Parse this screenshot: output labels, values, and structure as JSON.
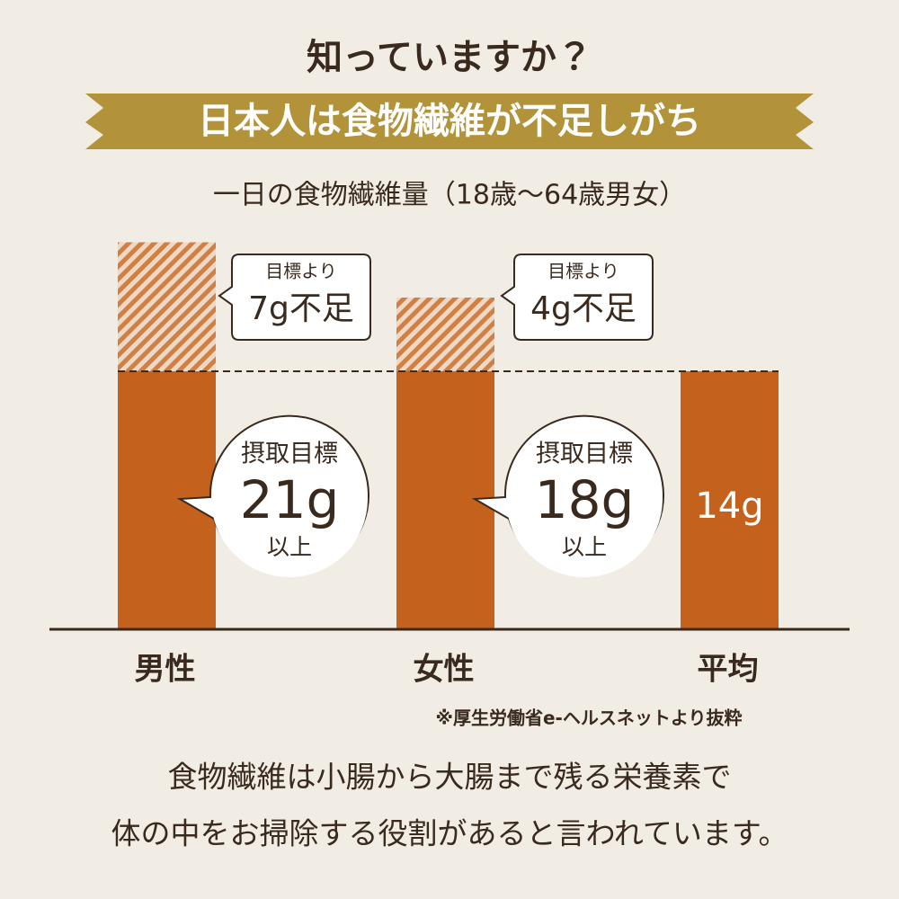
{
  "header": {
    "title": "知っていますか？",
    "banner": "日本人は食物繊維が不足しがち"
  },
  "chart_data": {
    "type": "bar",
    "title": "一日の食物繊維量（18歳～64歳男女）",
    "categories": [
      "男性",
      "女性",
      "平均"
    ],
    "values": [
      21,
      18,
      14
    ],
    "value_labels": [
      "21g",
      "18g",
      "14g"
    ],
    "color": "#c4621d",
    "target_caption": "摂取目標",
    "target_suffix": "以上",
    "shortfall_caption": "目標より",
    "shortfall_labels": [
      "7g不足",
      "4g不足",
      null
    ],
    "source": "※厚生労働省e-ヘルスネットより抜粋"
  },
  "footer": {
    "lines": [
      "食物繊維は小腸から大腸まで残る栄養素で",
      "体の中をお掃除する役割があると言われています。"
    ]
  }
}
